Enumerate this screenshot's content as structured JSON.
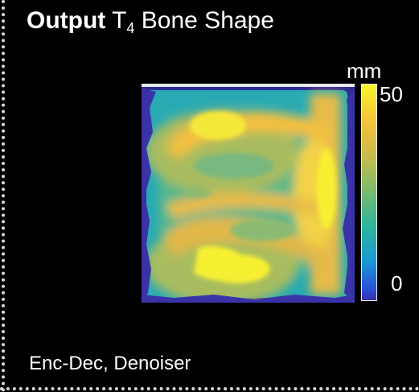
{
  "title": {
    "bold": "Output",
    "symbol": "T",
    "subscript": "4",
    "rest": "Bone Shape"
  },
  "colorbar": {
    "unit": "mm",
    "max_label": "50",
    "min_label": "0",
    "colors": [
      "#f7f72a",
      "#f3c23a",
      "#77ba6e",
      "#2eb59d",
      "#1a98d4",
      "#3a2ea8"
    ]
  },
  "caption": "Enc-Dec, Denoiser"
}
